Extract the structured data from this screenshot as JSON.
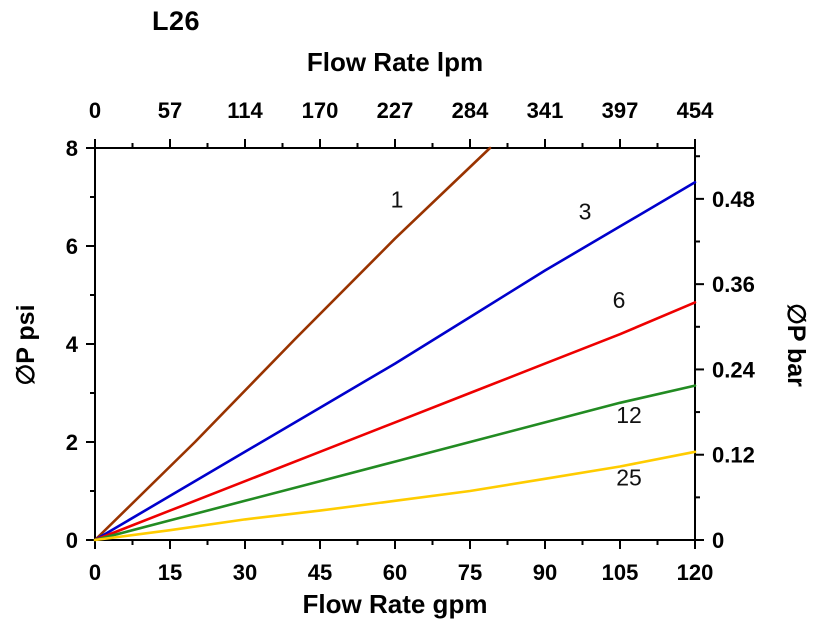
{
  "chart_data": {
    "type": "line",
    "title": "L26",
    "top_axis": {
      "label": "Flow Rate lpm",
      "ticks": [
        0,
        57,
        114,
        170,
        227,
        284,
        341,
        397,
        454
      ]
    },
    "bottom_axis": {
      "label": "Flow Rate gpm",
      "ticks": [
        0,
        15,
        30,
        45,
        60,
        75,
        90,
        105,
        120
      ],
      "range": [
        0,
        120
      ]
    },
    "left_axis": {
      "label": "∅P psi",
      "ticks": [
        0,
        2,
        4,
        6,
        8
      ],
      "minor_ticks": [
        1,
        3,
        5,
        7
      ],
      "range": [
        0,
        8
      ]
    },
    "right_axis": {
      "label": "∅P bar",
      "ticks": [
        0,
        0.12,
        0.24,
        0.36,
        0.48
      ],
      "minor_ticks": [
        0.06,
        0.18,
        0.3,
        0.42,
        0.54
      ],
      "psi_per_bar": 14.5038
    },
    "grid": false,
    "series": [
      {
        "name": "1",
        "color": "#993300",
        "x": [
          0,
          20,
          40,
          60,
          79
        ],
        "y": [
          0,
          2.0,
          4.1,
          6.15,
          8.0
        ],
        "label_at": {
          "x": 60.4,
          "y": 6.95
        }
      },
      {
        "name": "3",
        "color": "#0000CC",
        "x": [
          0,
          15,
          30,
          45,
          60,
          75,
          90,
          105,
          120
        ],
        "y": [
          0,
          0.9,
          1.8,
          2.7,
          3.6,
          4.55,
          5.5,
          6.4,
          7.3
        ],
        "label_at": {
          "x": 98,
          "y": 6.7
        }
      },
      {
        "name": "6",
        "color": "#EE0000",
        "x": [
          0,
          15,
          30,
          45,
          60,
          75,
          90,
          105,
          120
        ],
        "y": [
          0,
          0.6,
          1.2,
          1.8,
          2.4,
          3.0,
          3.6,
          4.2,
          4.85
        ],
        "label_at": {
          "x": 104.8,
          "y": 4.9
        }
      },
      {
        "name": "12",
        "color": "#228B22",
        "x": [
          0,
          15,
          30,
          45,
          60,
          75,
          90,
          105,
          120
        ],
        "y": [
          0,
          0.4,
          0.8,
          1.2,
          1.6,
          2.0,
          2.4,
          2.8,
          3.15
        ],
        "label_at": {
          "x": 106.8,
          "y": 2.55
        }
      },
      {
        "name": "25",
        "color": "#FFCC00",
        "x": [
          0,
          15,
          30,
          45,
          60,
          75,
          90,
          105,
          120
        ],
        "y": [
          0,
          0.2,
          0.42,
          0.6,
          0.8,
          1.0,
          1.25,
          1.5,
          1.8
        ],
        "label_at": {
          "x": 106.8,
          "y": 1.28
        }
      }
    ]
  }
}
